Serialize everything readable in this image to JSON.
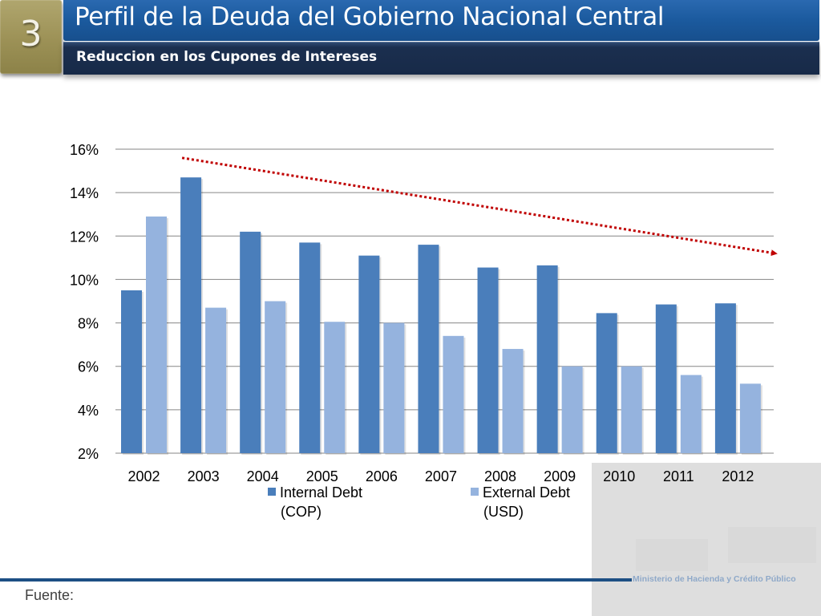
{
  "header": {
    "section_number": "3",
    "title": "Perfil de la Deuda del Gobierno Nacional Central",
    "subtitle": "Reduccion en los Cupones de Intereses"
  },
  "footer": {
    "source_label": "Fuente:",
    "ministry": "Ministerio de Hacienda y Crédito Público"
  },
  "colors": {
    "internal": "#4a7ebb",
    "external": "#95b3de",
    "trend_arrow": "#c00000",
    "gridline": "#868686",
    "accent_gold": "#9c9156",
    "title_blue": "#1b5a9e",
    "subtitle_navy": "#172a48"
  },
  "chart_data": {
    "type": "bar",
    "title": "",
    "xlabel": "",
    "ylabel": "",
    "ylim": [
      2,
      16
    ],
    "yticks": [
      2,
      4,
      6,
      8,
      10,
      12,
      14,
      16
    ],
    "ytick_labels": [
      "2%",
      "4%",
      "6%",
      "8%",
      "10%",
      "12%",
      "14%",
      "16%"
    ],
    "grid": true,
    "categories": [
      "2002",
      "2003",
      "2004",
      "2005",
      "2006",
      "2007",
      "2008",
      "2009",
      "2010",
      "2011",
      "2012"
    ],
    "series": [
      {
        "name": "Internal Debt (COP)",
        "legend_lines": [
          "Internal Debt",
          "(COP)"
        ],
        "values": [
          9.5,
          14.7,
          12.2,
          11.7,
          11.1,
          11.6,
          10.55,
          10.65,
          8.45,
          8.85,
          8.9
        ]
      },
      {
        "name": "External Debt (USD)",
        "legend_lines": [
          "External Debt",
          "(USD)"
        ],
        "values": [
          12.9,
          8.7,
          9.0,
          8.05,
          8.0,
          7.4,
          6.8,
          6.0,
          6.0,
          5.6,
          5.2
        ]
      }
    ],
    "legend_position": "bottom",
    "annotations": [
      {
        "type": "trend-arrow",
        "style": "dotted",
        "description": "declining trend",
        "from": {
          "category": "2003",
          "value": 15.6
        },
        "to": {
          "category": "2012",
          "value": 11.2
        }
      }
    ]
  }
}
